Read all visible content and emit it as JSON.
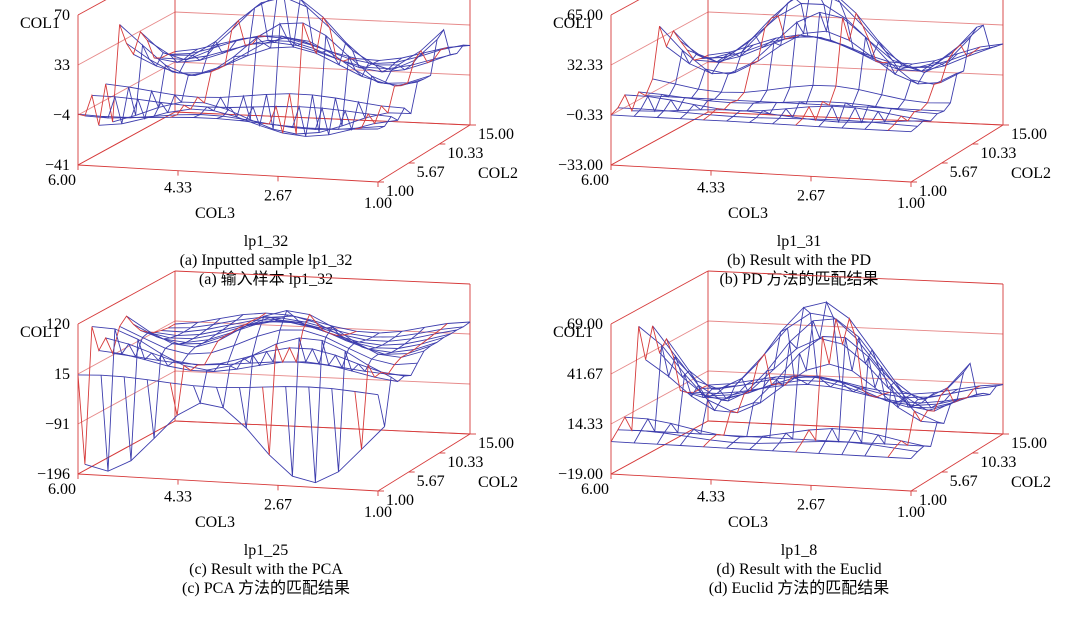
{
  "chart_data": [
    {
      "type": "surface",
      "zlabel": "COL1",
      "xlabel": "COL3",
      "ylabel": "COL2",
      "z_ticks": [
        "70",
        "33",
        "−4",
        "−41"
      ],
      "x_ticks": [
        "6.00",
        "4.33",
        "2.67",
        "1.00"
      ],
      "y_ticks": [
        "1.00",
        "5.67",
        "10.33",
        "15.00"
      ],
      "zlim": [
        -41,
        70
      ],
      "surface_profile_col1": [
        -4,
        -8,
        5,
        -20,
        8,
        -25,
        55,
        40,
        30,
        65,
        60,
        25,
        20,
        22,
        18
      ],
      "title": "lp1_32",
      "caption_en": "(a) Inputted sample lp1_32",
      "caption_zh": "(a)  输入样本 lp1_32"
    },
    {
      "type": "surface",
      "zlabel": "COL1",
      "xlabel": "COL3",
      "ylabel": "COL2",
      "z_ticks": [
        "65.00",
        "32.33",
        "−0.33",
        "−33.00"
      ],
      "x_ticks": [
        "6.00",
        "4.33",
        "2.67",
        "1.00"
      ],
      "y_ticks": [
        "1.00",
        "5.67",
        "10.33",
        "15.00"
      ],
      "zlim": [
        -33,
        65
      ],
      "surface_profile_col1": [
        -0.3,
        2,
        8,
        -5,
        5,
        0,
        10,
        55,
        40,
        65,
        60,
        50,
        25,
        22,
        20
      ],
      "title": "lp1_31",
      "caption_en": "(b) Result with the PD",
      "caption_zh": "(b) PD 方法的匹配结果"
    },
    {
      "type": "surface",
      "zlabel": "COL1",
      "xlabel": "COL3",
      "ylabel": "COL2",
      "z_ticks": [
        "120",
        "15",
        "−91",
        "−196"
      ],
      "x_ticks": [
        "6.00",
        "4.33",
        "2.67",
        "1.00"
      ],
      "y_ticks": [
        "1.00",
        "5.67",
        "10.33",
        "15.00"
      ],
      "zlim": [
        -196,
        120
      ],
      "surface_profile_col1": [
        15,
        -196,
        100,
        40,
        60,
        20,
        80,
        110,
        90,
        70,
        60,
        50,
        45,
        40,
        40
      ],
      "title": "lp1_25",
      "caption_en": "(c) Result with the PCA",
      "caption_zh": "(c) PCA 方法的匹配结果"
    },
    {
      "type": "surface",
      "zlabel": "COL1",
      "xlabel": "COL3",
      "ylabel": "COL2",
      "z_ticks": [
        "69.00",
        "41.67",
        "14.33",
        "−19.00"
      ],
      "x_ticks": [
        "6.00",
        "4.33",
        "2.67",
        "1.00"
      ],
      "y_ticks": [
        "1.00",
        "5.67",
        "10.33",
        "15.00"
      ],
      "zlim": [
        -19,
        69
      ],
      "surface_profile_col1": [
        0,
        5,
        10,
        0,
        60,
        40,
        65,
        50,
        69,
        60,
        20,
        15,
        10,
        12,
        10
      ],
      "title": "lp1_8",
      "caption_en": "(d) Result with the Euclid",
      "caption_zh": "(d) Euclid 方法的匹配结果"
    }
  ]
}
